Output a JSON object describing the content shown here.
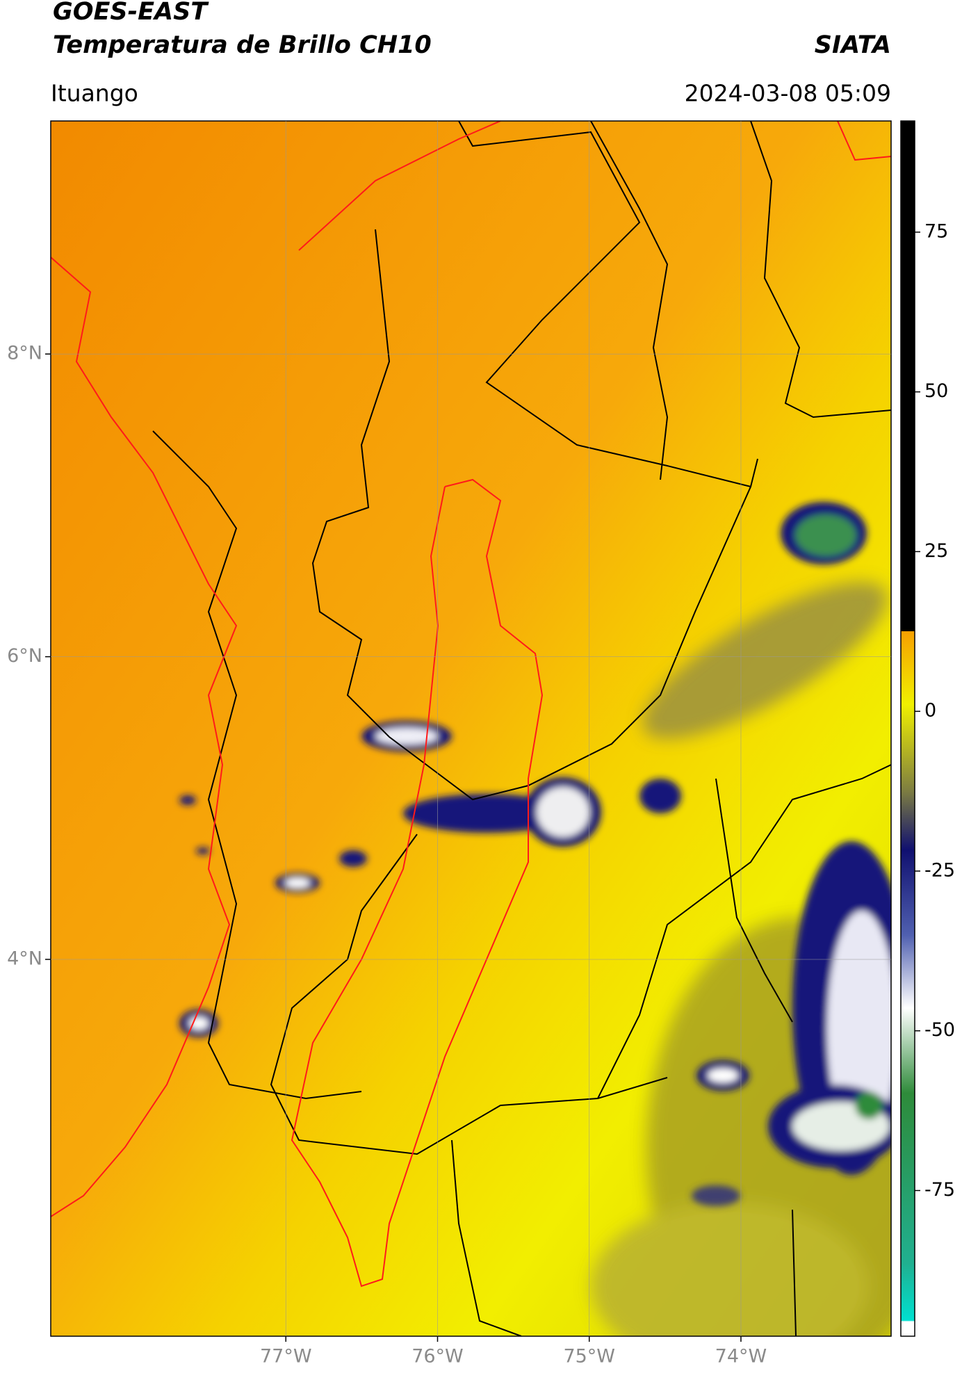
{
  "header": {
    "title": "GOES-EAST",
    "subtitle": "Temperatura de Brillo CH10",
    "source": "SIATA",
    "location": "Ituango",
    "datetime": "2024-03-08 05:09"
  },
  "map": {
    "xlim": [
      -78.55,
      -73.01
    ],
    "ylim": [
      1.51,
      9.54
    ],
    "xticks": [
      {
        "value": -77,
        "label": "77°W"
      },
      {
        "value": -76,
        "label": "76°W"
      },
      {
        "value": -75,
        "label": "75°W"
      },
      {
        "value": -74,
        "label": "74°W"
      }
    ],
    "yticks": [
      {
        "value": 4,
        "label": "4°N"
      },
      {
        "value": 6,
        "label": "6°N"
      },
      {
        "value": 8,
        "label": "8°N"
      }
    ]
  },
  "colorbar": {
    "lim": [
      -97.8,
      92.4
    ],
    "ticks": [
      -75,
      -50,
      -25,
      0,
      25,
      50,
      75
    ]
  }
}
